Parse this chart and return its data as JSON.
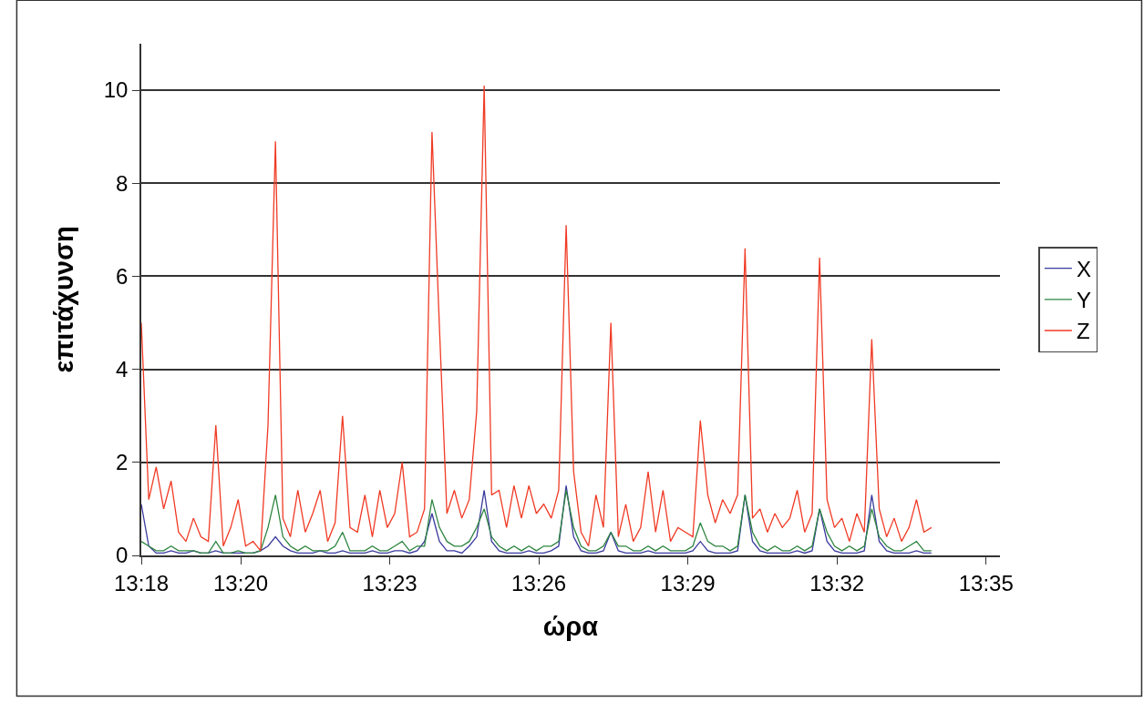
{
  "chart_data": {
    "type": "line",
    "xlabel": "ώρα",
    "ylabel": "επιτάχυνση",
    "x": [
      13.3,
      13.3025,
      13.305,
      13.3075,
      13.31,
      13.3125,
      13.315,
      13.3175,
      13.32,
      13.3225,
      13.325,
      13.3275,
      13.33,
      13.3325,
      13.335,
      13.3375,
      13.34,
      13.3425,
      13.345,
      13.3475,
      13.35,
      13.3525,
      13.355,
      13.3575,
      13.36,
      13.3625,
      13.365,
      13.3675,
      13.37,
      13.3725,
      13.375,
      13.3775,
      13.38,
      13.3825,
      13.385,
      13.3875,
      13.39,
      13.3925,
      13.395,
      13.3975,
      13.4,
      13.4025,
      13.405,
      13.4075,
      13.41,
      13.4125,
      13.415,
      13.4175,
      13.42,
      13.4225,
      13.425,
      13.4275,
      13.43,
      13.4325,
      13.435,
      13.4375,
      13.44,
      13.4425,
      13.445,
      13.4475,
      13.45,
      13.4525,
      13.455,
      13.4575,
      13.46,
      13.4625,
      13.465,
      13.4675,
      13.47,
      13.4725,
      13.475,
      13.4775,
      13.48,
      13.4825,
      13.485,
      13.4875,
      13.49,
      13.4925,
      13.495,
      13.4975,
      13.5,
      13.5025,
      13.505,
      13.5075,
      13.51,
      13.5125,
      13.515,
      13.5175,
      13.52,
      13.5225,
      13.525,
      13.5275,
      13.53,
      13.5325,
      13.535,
      13.5375,
      13.54,
      13.5425,
      13.545,
      13.5475,
      13.55,
      13.5525,
      13.555,
      13.5575,
      13.56,
      13.5625,
      13.565
    ],
    "series": [
      {
        "name": "X",
        "color": "#3a3a9e",
        "values": [
          1.1,
          0.2,
          0.05,
          0.05,
          0.1,
          0.05,
          0.05,
          0.1,
          0.05,
          0.05,
          0.1,
          0.05,
          0.05,
          0.05,
          0.05,
          0.05,
          0.1,
          0.2,
          0.4,
          0.2,
          0.1,
          0.05,
          0.05,
          0.05,
          0.1,
          0.05,
          0.05,
          0.1,
          0.05,
          0.05,
          0.05,
          0.1,
          0.05,
          0.05,
          0.1,
          0.1,
          0.05,
          0.1,
          0.3,
          0.9,
          0.3,
          0.1,
          0.1,
          0.05,
          0.2,
          0.4,
          1.4,
          0.3,
          0.1,
          0.05,
          0.05,
          0.05,
          0.1,
          0.05,
          0.05,
          0.1,
          0.2,
          1.5,
          0.4,
          0.1,
          0.05,
          0.05,
          0.1,
          0.5,
          0.1,
          0.05,
          0.05,
          0.05,
          0.1,
          0.05,
          0.05,
          0.05,
          0.05,
          0.05,
          0.1,
          0.3,
          0.1,
          0.05,
          0.05,
          0.05,
          0.1,
          1.3,
          0.3,
          0.1,
          0.05,
          0.05,
          0.05,
          0.05,
          0.1,
          0.05,
          0.1,
          1.0,
          0.3,
          0.1,
          0.05,
          0.05,
          0.05,
          0.1,
          1.3,
          0.3,
          0.1,
          0.05,
          0.05,
          0.05,
          0.1,
          0.05,
          0.05
        ]
      },
      {
        "name": "Y",
        "color": "#2e8540",
        "values": [
          0.3,
          0.2,
          0.1,
          0.1,
          0.2,
          0.1,
          0.1,
          0.1,
          0.05,
          0.05,
          0.3,
          0.05,
          0.05,
          0.1,
          0.05,
          0.05,
          0.1,
          0.6,
          1.3,
          0.4,
          0.2,
          0.1,
          0.2,
          0.1,
          0.1,
          0.1,
          0.2,
          0.5,
          0.1,
          0.1,
          0.1,
          0.2,
          0.1,
          0.1,
          0.2,
          0.3,
          0.1,
          0.2,
          0.2,
          1.2,
          0.6,
          0.3,
          0.2,
          0.2,
          0.3,
          0.6,
          1.0,
          0.4,
          0.2,
          0.1,
          0.2,
          0.1,
          0.2,
          0.1,
          0.2,
          0.2,
          0.3,
          1.4,
          0.6,
          0.2,
          0.1,
          0.1,
          0.2,
          0.5,
          0.2,
          0.2,
          0.1,
          0.1,
          0.2,
          0.1,
          0.2,
          0.1,
          0.1,
          0.1,
          0.2,
          0.7,
          0.3,
          0.2,
          0.2,
          0.1,
          0.2,
          1.3,
          0.5,
          0.2,
          0.1,
          0.2,
          0.1,
          0.1,
          0.2,
          0.1,
          0.2,
          1.0,
          0.5,
          0.2,
          0.1,
          0.2,
          0.1,
          0.2,
          1.0,
          0.4,
          0.2,
          0.1,
          0.1,
          0.2,
          0.3,
          0.1,
          0.1
        ]
      },
      {
        "name": "Z",
        "color": "#f03a24",
        "values": [
          5.0,
          1.2,
          1.9,
          1.0,
          1.6,
          0.5,
          0.3,
          0.8,
          0.4,
          0.3,
          2.8,
          0.2,
          0.6,
          1.2,
          0.2,
          0.3,
          0.1,
          2.8,
          8.9,
          0.8,
          0.4,
          1.4,
          0.5,
          0.9,
          1.4,
          0.3,
          0.7,
          3.0,
          0.6,
          0.5,
          1.3,
          0.4,
          1.4,
          0.6,
          0.9,
          2.0,
          0.4,
          0.5,
          1.0,
          9.1,
          4.9,
          0.9,
          1.4,
          0.8,
          1.2,
          3.1,
          10.1,
          1.3,
          1.4,
          0.6,
          1.5,
          0.8,
          1.5,
          0.9,
          1.1,
          0.8,
          1.4,
          7.1,
          1.8,
          0.5,
          0.2,
          1.3,
          0.6,
          5.0,
          0.4,
          1.1,
          0.3,
          0.6,
          1.8,
          0.5,
          1.4,
          0.3,
          0.6,
          0.5,
          0.4,
          2.9,
          1.3,
          0.7,
          1.2,
          0.9,
          1.3,
          6.6,
          0.8,
          1.0,
          0.5,
          0.9,
          0.6,
          0.8,
          1.4,
          0.5,
          0.9,
          6.4,
          1.2,
          0.6,
          0.8,
          0.3,
          0.9,
          0.5,
          4.65,
          1.0,
          0.4,
          0.8,
          0.3,
          0.6,
          1.2,
          0.5,
          0.6
        ]
      }
    ],
    "xlim": [
      13.3,
      13.588
    ],
    "xticks": [
      {
        "value": 13.3,
        "label": "13:18"
      },
      {
        "value": 13.33333,
        "label": "13:20"
      },
      {
        "value": 13.38333,
        "label": "13:23"
      },
      {
        "value": 13.43333,
        "label": "13:26"
      },
      {
        "value": 13.48333,
        "label": "13:29"
      },
      {
        "value": 13.53333,
        "label": "13:32"
      },
      {
        "value": 13.58333,
        "label": "13:35"
      }
    ],
    "ylim": [
      0,
      11
    ],
    "yticks": [
      0,
      2,
      4,
      6,
      8,
      10
    ],
    "grid": "y",
    "legend": "right",
    "marker": "none",
    "line_style": "solid"
  }
}
